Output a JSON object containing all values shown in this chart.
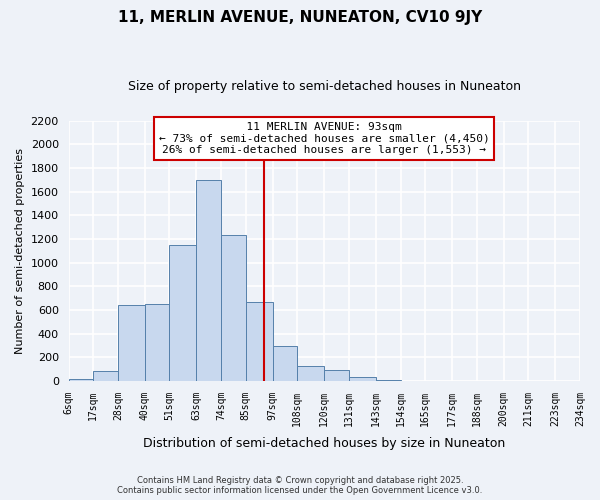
{
  "title": "11, MERLIN AVENUE, NUNEATON, CV10 9JY",
  "subtitle": "Size of property relative to semi-detached houses in Nuneaton",
  "xlabel": "Distribution of semi-detached houses by size in Nuneaton",
  "ylabel": "Number of semi-detached properties",
  "bin_labels": [
    "6sqm",
    "17sqm",
    "28sqm",
    "40sqm",
    "51sqm",
    "63sqm",
    "74sqm",
    "85sqm",
    "97sqm",
    "108sqm",
    "120sqm",
    "131sqm",
    "143sqm",
    "154sqm",
    "165sqm",
    "177sqm",
    "188sqm",
    "200sqm",
    "211sqm",
    "223sqm",
    "234sqm"
  ],
  "bin_edges": [
    6,
    17,
    28,
    40,
    51,
    63,
    74,
    85,
    97,
    108,
    120,
    131,
    143,
    154,
    165,
    177,
    188,
    200,
    211,
    223,
    234
  ],
  "bar_heights": [
    20,
    80,
    640,
    650,
    1150,
    1700,
    1230,
    670,
    295,
    125,
    90,
    30,
    10,
    2,
    1,
    0,
    0,
    0,
    0,
    0
  ],
  "bar_color": "#c8d8ee",
  "bar_edge_color": "#5580aa",
  "property_line_x": 93,
  "property_line_color": "#cc0000",
  "annotation_title": "11 MERLIN AVENUE: 93sqm",
  "annotation_line1": "← 73% of semi-detached houses are smaller (4,450)",
  "annotation_line2": "26% of semi-detached houses are larger (1,553) →",
  "annotation_box_color": "white",
  "annotation_box_edge_color": "#cc0000",
  "ylim": [
    0,
    2200
  ],
  "yticks": [
    0,
    200,
    400,
    600,
    800,
    1000,
    1200,
    1400,
    1600,
    1800,
    2000,
    2200
  ],
  "background_color": "#eef2f8",
  "grid_color": "white",
  "footer_line1": "Contains HM Land Registry data © Crown copyright and database right 2025.",
  "footer_line2": "Contains public sector information licensed under the Open Government Licence v3.0."
}
